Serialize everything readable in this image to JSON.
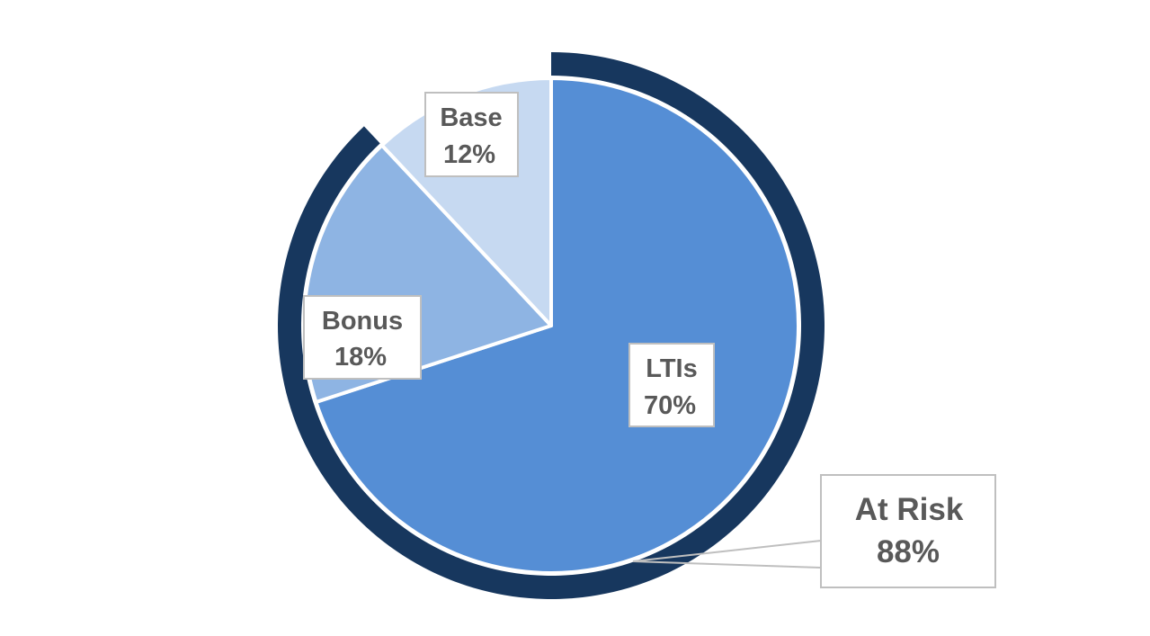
{
  "chart_data": {
    "type": "pie",
    "slices": [
      {
        "label": "LTIs",
        "value": 70,
        "value_label": "70%",
        "color": "#558ed5"
      },
      {
        "label": "Bonus",
        "value": 18,
        "value_label": "18%",
        "color": "#8eb4e3"
      },
      {
        "label": "Base",
        "value": 12,
        "value_label": "12%",
        "color": "#c6d9f1"
      }
    ],
    "outer_ring": {
      "label": "At Risk",
      "value": 88,
      "value_label": "88%",
      "color": "#17375e"
    },
    "start": "12 o'clock, clockwise",
    "legend": "none"
  }
}
